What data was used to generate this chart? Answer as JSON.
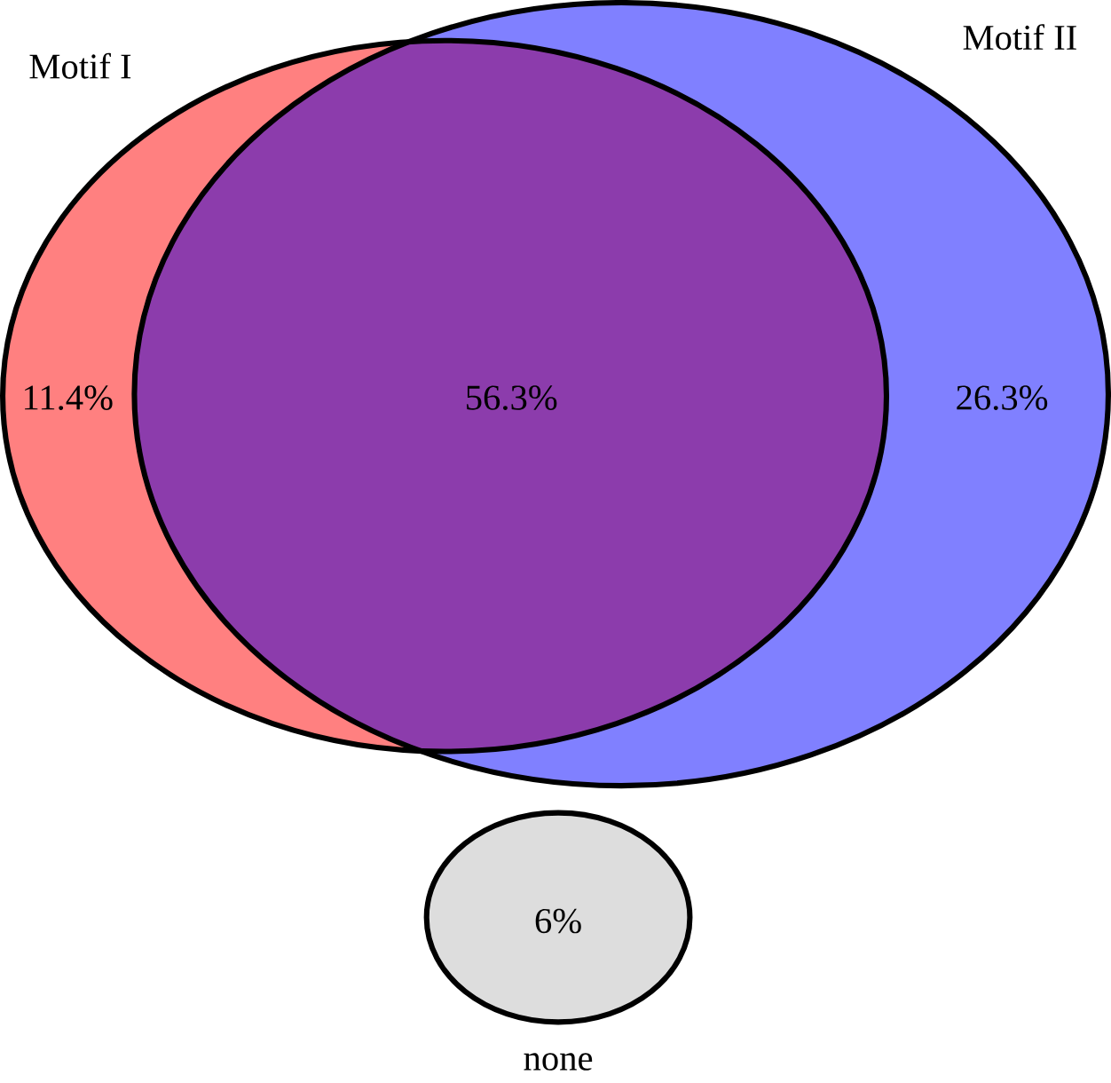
{
  "chart_data": {
    "type": "other",
    "annotations": [
      "Motif I",
      "Motif II"
    ],
    "categories": [
      null,
      null,
      null,
      "none"
    ],
    "values": [
      11.4,
      56.3,
      26.3,
      6
    ],
    "value_labels": [
      "11.4%",
      "56.3%",
      "26.3%",
      "6%"
    ],
    "colors": [
      "#ff8080",
      "#8c3cac",
      "#8080ff",
      "#dddddd"
    ]
  }
}
